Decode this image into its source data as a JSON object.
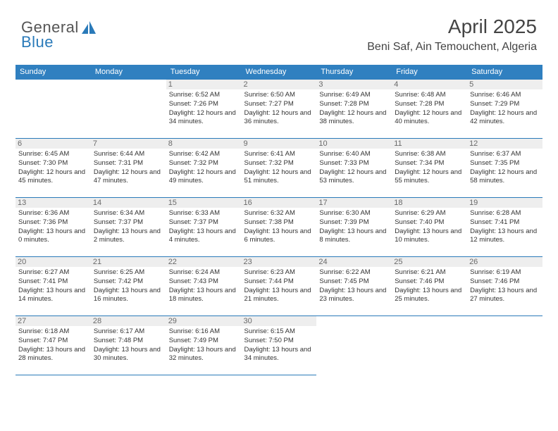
{
  "logo": {
    "text1": "General",
    "text2": "Blue"
  },
  "header": {
    "month": "April 2025",
    "location": "Beni Saf, Ain Temouchent, Algeria"
  },
  "dow": [
    "Sunday",
    "Monday",
    "Tuesday",
    "Wednesday",
    "Thursday",
    "Friday",
    "Saturday"
  ],
  "colors": {
    "header_bg": "#3080c0",
    "border": "#2a7ab9",
    "daynum_bg": "#eeeeee"
  },
  "weeks": [
    [
      null,
      null,
      {
        "n": "1",
        "sr": "6:52 AM",
        "ss": "7:26 PM",
        "dl": "12 hours and 34 minutes."
      },
      {
        "n": "2",
        "sr": "6:50 AM",
        "ss": "7:27 PM",
        "dl": "12 hours and 36 minutes."
      },
      {
        "n": "3",
        "sr": "6:49 AM",
        "ss": "7:28 PM",
        "dl": "12 hours and 38 minutes."
      },
      {
        "n": "4",
        "sr": "6:48 AM",
        "ss": "7:28 PM",
        "dl": "12 hours and 40 minutes."
      },
      {
        "n": "5",
        "sr": "6:46 AM",
        "ss": "7:29 PM",
        "dl": "12 hours and 42 minutes."
      }
    ],
    [
      {
        "n": "6",
        "sr": "6:45 AM",
        "ss": "7:30 PM",
        "dl": "12 hours and 45 minutes."
      },
      {
        "n": "7",
        "sr": "6:44 AM",
        "ss": "7:31 PM",
        "dl": "12 hours and 47 minutes."
      },
      {
        "n": "8",
        "sr": "6:42 AM",
        "ss": "7:32 PM",
        "dl": "12 hours and 49 minutes."
      },
      {
        "n": "9",
        "sr": "6:41 AM",
        "ss": "7:32 PM",
        "dl": "12 hours and 51 minutes."
      },
      {
        "n": "10",
        "sr": "6:40 AM",
        "ss": "7:33 PM",
        "dl": "12 hours and 53 minutes."
      },
      {
        "n": "11",
        "sr": "6:38 AM",
        "ss": "7:34 PM",
        "dl": "12 hours and 55 minutes."
      },
      {
        "n": "12",
        "sr": "6:37 AM",
        "ss": "7:35 PM",
        "dl": "12 hours and 58 minutes."
      }
    ],
    [
      {
        "n": "13",
        "sr": "6:36 AM",
        "ss": "7:36 PM",
        "dl": "13 hours and 0 minutes."
      },
      {
        "n": "14",
        "sr": "6:34 AM",
        "ss": "7:37 PM",
        "dl": "13 hours and 2 minutes."
      },
      {
        "n": "15",
        "sr": "6:33 AM",
        "ss": "7:37 PM",
        "dl": "13 hours and 4 minutes."
      },
      {
        "n": "16",
        "sr": "6:32 AM",
        "ss": "7:38 PM",
        "dl": "13 hours and 6 minutes."
      },
      {
        "n": "17",
        "sr": "6:30 AM",
        "ss": "7:39 PM",
        "dl": "13 hours and 8 minutes."
      },
      {
        "n": "18",
        "sr": "6:29 AM",
        "ss": "7:40 PM",
        "dl": "13 hours and 10 minutes."
      },
      {
        "n": "19",
        "sr": "6:28 AM",
        "ss": "7:41 PM",
        "dl": "13 hours and 12 minutes."
      }
    ],
    [
      {
        "n": "20",
        "sr": "6:27 AM",
        "ss": "7:41 PM",
        "dl": "13 hours and 14 minutes."
      },
      {
        "n": "21",
        "sr": "6:25 AM",
        "ss": "7:42 PM",
        "dl": "13 hours and 16 minutes."
      },
      {
        "n": "22",
        "sr": "6:24 AM",
        "ss": "7:43 PM",
        "dl": "13 hours and 18 minutes."
      },
      {
        "n": "23",
        "sr": "6:23 AM",
        "ss": "7:44 PM",
        "dl": "13 hours and 21 minutes."
      },
      {
        "n": "24",
        "sr": "6:22 AM",
        "ss": "7:45 PM",
        "dl": "13 hours and 23 minutes."
      },
      {
        "n": "25",
        "sr": "6:21 AM",
        "ss": "7:46 PM",
        "dl": "13 hours and 25 minutes."
      },
      {
        "n": "26",
        "sr": "6:19 AM",
        "ss": "7:46 PM",
        "dl": "13 hours and 27 minutes."
      }
    ],
    [
      {
        "n": "27",
        "sr": "6:18 AM",
        "ss": "7:47 PM",
        "dl": "13 hours and 28 minutes."
      },
      {
        "n": "28",
        "sr": "6:17 AM",
        "ss": "7:48 PM",
        "dl": "13 hours and 30 minutes."
      },
      {
        "n": "29",
        "sr": "6:16 AM",
        "ss": "7:49 PM",
        "dl": "13 hours and 32 minutes."
      },
      {
        "n": "30",
        "sr": "6:15 AM",
        "ss": "7:50 PM",
        "dl": "13 hours and 34 minutes."
      },
      null,
      null,
      null
    ]
  ],
  "labels": {
    "sunrise": "Sunrise:",
    "sunset": "Sunset:",
    "daylight": "Daylight:"
  }
}
